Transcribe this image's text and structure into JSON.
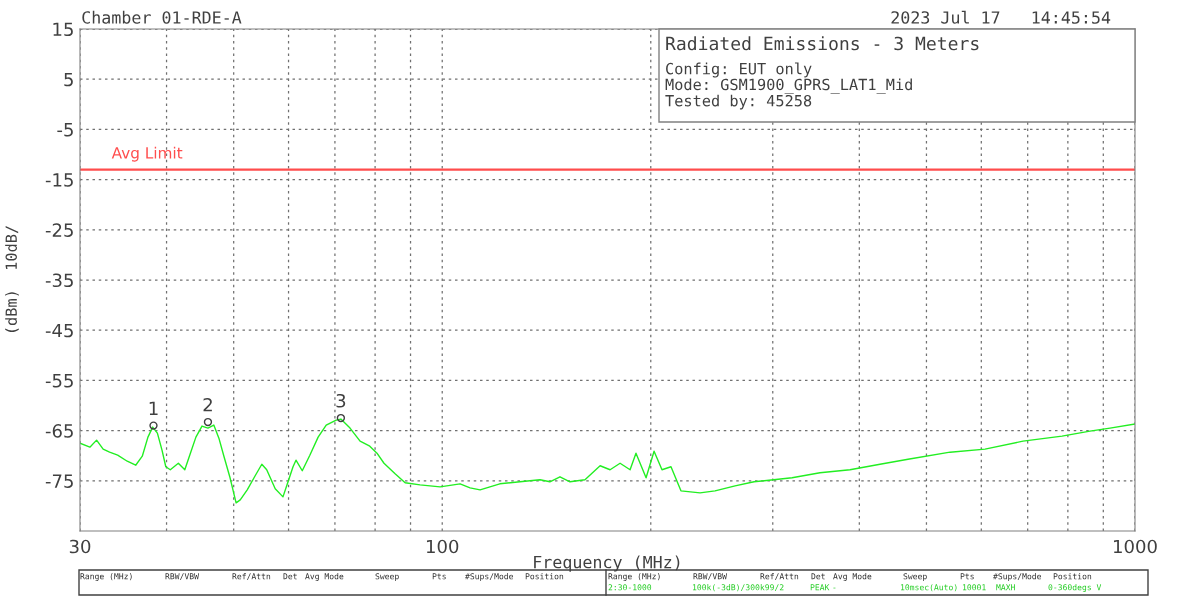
{
  "chart_data": {
    "type": "line",
    "title": "Chamber 01-RDE-A",
    "subtitle": "2023 Jul 17   14:45:54",
    "xlabel": "Frequency (MHz)",
    "ylabel": "(dBm)  10dB/",
    "log": "x",
    "grid": true,
    "legend": false,
    "xlim": [
      30,
      1000
    ],
    "ylim": [
      -85,
      15
    ],
    "xticks": [
      30,
      {
        "value": 40,
        "label": null
      },
      {
        "value": 50,
        "label": null
      },
      {
        "value": 60,
        "label": null
      },
      {
        "value": 70,
        "label": null
      },
      {
        "value": 80,
        "label": null
      },
      {
        "value": 90,
        "label": null
      },
      100,
      {
        "value": 200,
        "label": null
      },
      {
        "value": 300,
        "label": null
      },
      {
        "value": 400,
        "label": null
      },
      {
        "value": 500,
        "label": null
      },
      {
        "value": 600,
        "label": null
      },
      {
        "value": 700,
        "label": null
      },
      {
        "value": 800,
        "label": null
      },
      {
        "value": 900,
        "label": null
      },
      1000
    ],
    "yticks": [
      15,
      5,
      -5,
      -15,
      -25,
      -35,
      -45,
      -55,
      -65,
      -75
    ],
    "ref_lines": [
      {
        "axis": "y",
        "value": -13,
        "label": "Avg Limit",
        "color": "#ff4d4d"
      }
    ],
    "series": [
      {
        "color": "#22ee22",
        "x": [
          30.0,
          31.0,
          31.7,
          32.4,
          33.1,
          34.0,
          35.1,
          36.1,
          36.9,
          37.6,
          38.2,
          38.8,
          39.4,
          39.9,
          40.5,
          41.6,
          42.5,
          43.3,
          44.1,
          45.0,
          45.9,
          46.8,
          47.6,
          48.4,
          49.4,
          50.4,
          51.1,
          52.3,
          53.7,
          54.9,
          55.8,
          57.4,
          58.9,
          59.9,
          60.9,
          61.5,
          62.8,
          64.4,
          66.2,
          68.0,
          70.3,
          71.4,
          73.6,
          76.1,
          78.6,
          80.5,
          82.4,
          85.5,
          88.4,
          92.9,
          99.3,
          106.1,
          109.7,
          113.4,
          121.1,
          129.5,
          138.4,
          143.0,
          147.9,
          152.9,
          160.7,
          169.0,
          174.7,
          180.6,
          186.7,
          190.4,
          196.9,
          202.2,
          207.6,
          213.9,
          221.1,
          235.6,
          247.6,
          264.7,
          281.9,
          319.9,
          351.0,
          387.8,
          428.5,
          470.3,
          540.8,
          607.5,
          689.3,
          784.7,
          861.0,
          920.4,
          1000.0
        ],
        "values": [
          -67.5,
          -68.3,
          -66.9,
          -68.7,
          -69.3,
          -69.9,
          -71.1,
          -71.9,
          -70.1,
          -66.3,
          -64.3,
          -65.5,
          -68.9,
          -72.2,
          -72.8,
          -71.5,
          -72.8,
          -69.5,
          -66.3,
          -64.1,
          -64.5,
          -63.9,
          -66.5,
          -70.1,
          -74.4,
          -79.4,
          -78.8,
          -76.8,
          -74.0,
          -71.7,
          -72.8,
          -76.6,
          -78.2,
          -75.2,
          -72.2,
          -70.9,
          -73.0,
          -69.9,
          -66.3,
          -63.9,
          -62.9,
          -62.7,
          -64.5,
          -67.1,
          -68.1,
          -69.5,
          -71.5,
          -73.6,
          -75.4,
          -75.8,
          -76.2,
          -75.6,
          -76.4,
          -76.8,
          -75.6,
          -75.2,
          -74.8,
          -75.2,
          -74.2,
          -75.2,
          -74.8,
          -72.0,
          -72.8,
          -71.5,
          -72.8,
          -69.5,
          -74.4,
          -69.1,
          -72.8,
          -72.2,
          -77.0,
          -77.4,
          -77.0,
          -76.0,
          -75.2,
          -74.4,
          -73.4,
          -72.8,
          -71.7,
          -70.7,
          -69.3,
          -68.7,
          -67.1,
          -66.1,
          -65.1,
          -64.5,
          -63.7
        ]
      }
    ],
    "annotations": [
      {
        "text": "1",
        "x": 38.3,
        "y": -64
      },
      {
        "text": "2",
        "x": 45.9,
        "y": -63.3
      },
      {
        "text": "3",
        "x": 71.4,
        "y": -62.5
      },
      "Radiated Emissions - 3 Meters",
      "Config: EUT only",
      "Mode: GSM1900_GPRS_LAT1_Mid",
      "Tested by: 45258",
      "Range (MHz)",
      "RBW/VBW",
      "Ref/Attn",
      "Det",
      "Avg Mode",
      "Sweep",
      "Pts",
      "#Sups/Mode",
      "Position",
      "Range (MHz)",
      "RBW/VBW",
      "Ref/Attn",
      "Det",
      "Avg Mode",
      "Sweep",
      "Pts",
      "#Sups/Mode",
      "Position",
      "2:30-1000",
      "100k(-3dB)/300k99/2",
      "PEAK",
      "-",
      "10msec(Auto)",
      "10001",
      "MAXH",
      "0-360degs V"
    ]
  }
}
